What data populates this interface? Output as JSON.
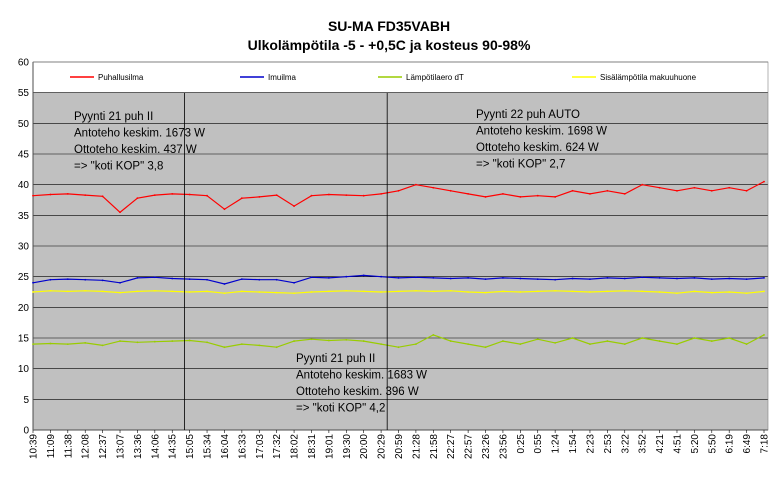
{
  "chart_data": {
    "type": "line",
    "title": "SU-MA FD35VABH",
    "subtitle": "Ulkolämpötila -5 - +0,5C ja kosteus 90-98%",
    "ylim": [
      0,
      60
    ],
    "yticks": [
      0,
      5,
      10,
      15,
      20,
      25,
      30,
      35,
      40,
      45,
      50,
      55,
      60
    ],
    "grid": "horizontal",
    "plot_background": "#c0c0c0",
    "legend_position": "top",
    "categories": [
      "10:39",
      "11:09",
      "11:38",
      "12:08",
      "12:37",
      "13:07",
      "13:36",
      "14:06",
      "14:35",
      "15:05",
      "15:34",
      "16:04",
      "16:33",
      "17:03",
      "17:32",
      "18:02",
      "18:31",
      "19:01",
      "19:30",
      "20:00",
      "20:29",
      "20:59",
      "21:28",
      "21:58",
      "22:27",
      "22:57",
      "23:26",
      "23:56",
      "0:25",
      "0:55",
      "1:24",
      "1:54",
      "2:23",
      "2:53",
      "3:22",
      "3:52",
      "4:21",
      "4:51",
      "5:20",
      "5:50",
      "6:19",
      "6:49",
      "7:18"
    ],
    "series": [
      {
        "name": "Puhallusilma",
        "color": "#ff0000",
        "values": [
          38.2,
          38.4,
          38.5,
          38.3,
          38.1,
          35.5,
          37.8,
          38.3,
          38.5,
          38.4,
          38.2,
          36.0,
          37.8,
          38.0,
          38.3,
          36.5,
          38.2,
          38.4,
          38.3,
          38.2,
          38.5,
          39.0,
          40.0,
          39.5,
          39.0,
          38.5,
          38.0,
          38.5,
          38.0,
          38.2,
          38.0,
          39.0,
          38.5,
          39.0,
          38.5,
          40.0,
          39.5,
          39.0,
          39.5,
          39.0,
          39.5,
          39.0,
          40.5
        ]
      },
      {
        "name": "Imuilma",
        "color": "#0000cc",
        "values": [
          24.0,
          24.5,
          24.6,
          24.5,
          24.4,
          24.0,
          24.8,
          24.9,
          24.7,
          24.6,
          24.5,
          23.8,
          24.6,
          24.5,
          24.5,
          24.0,
          24.9,
          24.8,
          25.0,
          25.2,
          25.0,
          24.8,
          24.9,
          24.8,
          24.7,
          24.8,
          24.6,
          24.8,
          24.7,
          24.6,
          24.5,
          24.7,
          24.6,
          24.8,
          24.7,
          24.9,
          24.8,
          24.7,
          24.8,
          24.6,
          24.7,
          24.6,
          24.8
        ]
      },
      {
        "name": "Lämpötilaero dT",
        "color": "#99cc00",
        "values": [
          14.0,
          14.1,
          14.0,
          14.2,
          13.8,
          14.5,
          14.3,
          14.4,
          14.5,
          14.6,
          14.3,
          13.5,
          14.0,
          13.8,
          13.5,
          14.5,
          14.8,
          14.6,
          14.7,
          14.5,
          14.0,
          13.5,
          14.0,
          15.5,
          14.5,
          14.0,
          13.5,
          14.5,
          14.0,
          14.8,
          14.2,
          15.0,
          14.0,
          14.5,
          14.0,
          15.0,
          14.5,
          14.0,
          15.0,
          14.5,
          15.0,
          14.0,
          15.5
        ]
      },
      {
        "name": "Sisälämpötila makuuhuone",
        "color": "#ffff00",
        "values": [
          22.5,
          22.7,
          22.6,
          22.7,
          22.6,
          22.4,
          22.6,
          22.7,
          22.6,
          22.5,
          22.6,
          22.3,
          22.6,
          22.5,
          22.4,
          22.3,
          22.5,
          22.6,
          22.7,
          22.6,
          22.5,
          22.6,
          22.7,
          22.6,
          22.7,
          22.5,
          22.4,
          22.6,
          22.5,
          22.6,
          22.7,
          22.6,
          22.5,
          22.6,
          22.7,
          22.6,
          22.5,
          22.3,
          22.6,
          22.4,
          22.5,
          22.3,
          22.6
        ]
      }
    ],
    "annotations": [
      {
        "lines": [
          "Pyynti 21 puh II",
          "Antoteho keskim. 1673 W",
          "Ottoteho keskim. 437 W",
          "=> \"koti KOP\" 3,8"
        ]
      },
      {
        "lines": [
          "Pyynti 22 puh AUTO",
          "Antoteho keskim. 1698 W",
          "Ottoteho keskim. 624 W",
          "=> \"koti KOP\" 2,7"
        ]
      },
      {
        "lines": [
          "Pyynti 21 puh II",
          "Antoteho keskim. 1683 W",
          "Ottoteho keskim. 396 W",
          "=> \"koti KOP\" 4,2"
        ]
      }
    ]
  }
}
